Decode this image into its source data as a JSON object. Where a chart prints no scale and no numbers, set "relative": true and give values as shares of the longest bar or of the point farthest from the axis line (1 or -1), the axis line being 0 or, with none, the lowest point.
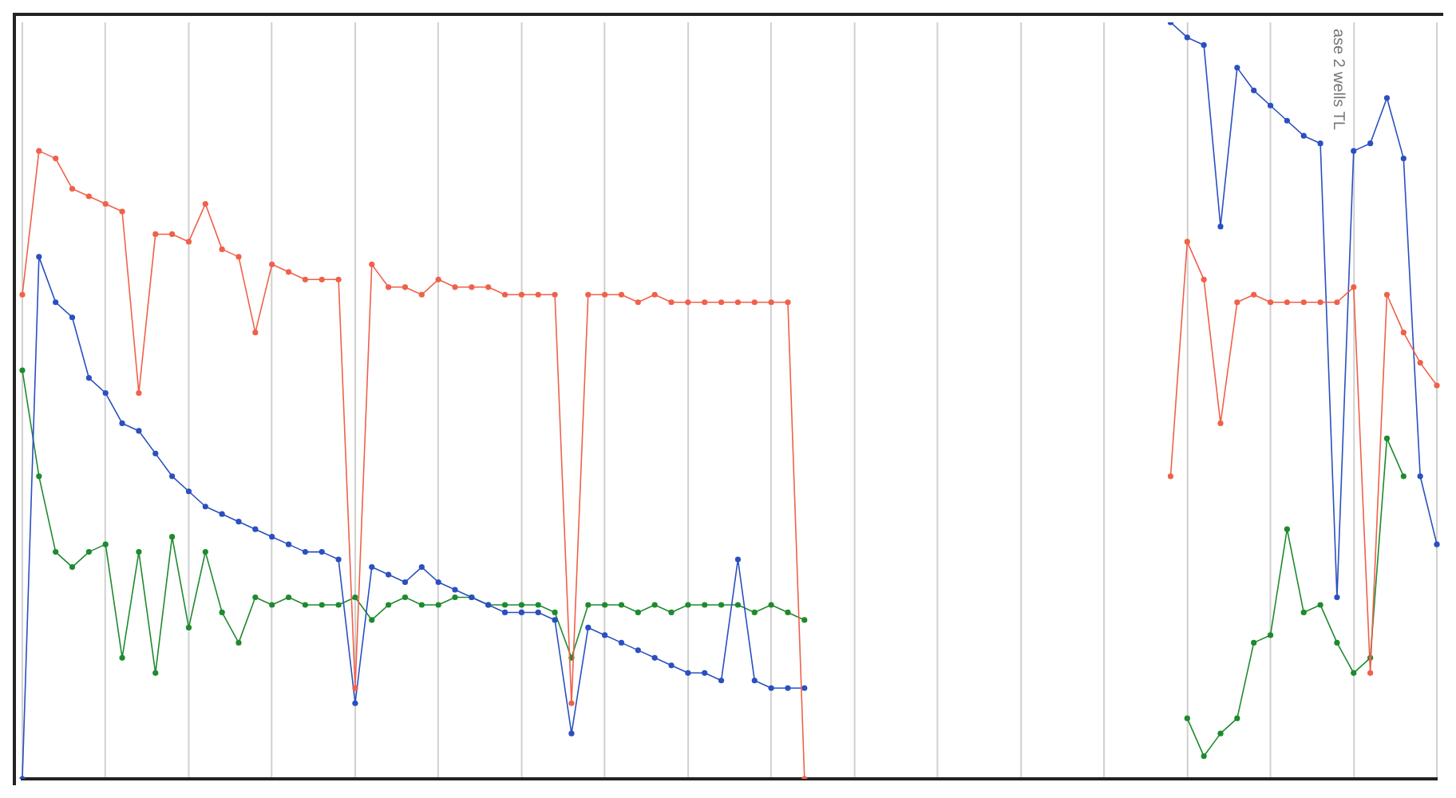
{
  "chart_data": {
    "type": "line",
    "relative": true,
    "grid": "x",
    "legend": false,
    "marker": "circle",
    "line_style": "solid",
    "annotations": [
      "ase 2 wells TL"
    ],
    "categories": [
      null,
      null,
      null,
      null,
      null,
      null,
      null,
      null,
      null,
      null,
      null,
      null,
      null,
      null,
      null,
      null,
      null,
      null,
      null,
      null,
      null,
      null,
      null,
      null,
      null,
      null,
      null,
      null,
      null,
      null,
      null,
      null,
      null,
      null,
      null,
      null,
      null,
      null,
      null,
      null,
      null,
      null,
      null,
      null,
      null,
      null,
      null,
      null,
      null,
      null,
      null,
      null,
      null,
      null,
      null,
      null,
      null,
      null,
      null,
      null,
      null,
      null,
      null,
      null,
      null,
      null,
      null,
      null,
      null,
      null,
      null,
      null,
      null,
      null,
      null,
      null,
      null,
      null,
      null,
      null,
      null,
      null,
      null,
      null,
      null,
      null
    ],
    "series": [
      {
        "color": "#f0604a",
        "values": [
          0.64,
          0.83,
          0.82,
          0.78,
          0.77,
          0.76,
          0.75,
          0.51,
          0.72,
          0.72,
          0.71,
          0.76,
          0.7,
          0.69,
          0.59,
          0.68,
          0.67,
          0.66,
          0.66,
          0.66,
          0.12,
          0.68,
          0.65,
          0.65,
          0.64,
          0.66,
          0.65,
          0.65,
          0.65,
          0.64,
          0.64,
          0.64,
          0.64,
          0.1,
          0.64,
          0.64,
          0.64,
          0.63,
          0.64,
          0.63,
          0.63,
          0.63,
          0.63,
          0.63,
          0.63,
          0.63,
          0.63,
          0.0,
          null,
          null,
          null,
          null,
          null,
          null,
          null,
          null,
          null,
          null,
          null,
          null,
          null,
          null,
          null,
          null,
          null,
          null,
          null,
          null,
          null,
          null,
          null,
          null,
          null,
          null,
          null,
          null,
          null,
          null,
          null,
          null,
          null,
          null,
          null,
          null,
          null,
          null
        ]
      },
      {
        "color": "#f0604a",
        "values": [
          null,
          null,
          null,
          null,
          null,
          null,
          null,
          null,
          null,
          null,
          null,
          null,
          null,
          null,
          null,
          null,
          null,
          null,
          null,
          null,
          null,
          null,
          null,
          null,
          null,
          null,
          null,
          null,
          null,
          null,
          null,
          null,
          null,
          null,
          null,
          null,
          null,
          null,
          null,
          null,
          null,
          null,
          null,
          null,
          null,
          null,
          null,
          null,
          null,
          null,
          null,
          null,
          null,
          null,
          null,
          null,
          null,
          null,
          null,
          null,
          null,
          null,
          null,
          null,
          null,
          null,
          null,
          null,
          null,
          0.4,
          0.71,
          0.66,
          0.47,
          0.63,
          0.64,
          0.63,
          0.63,
          0.63,
          0.63,
          0.63,
          0.65,
          0.14,
          0.64,
          0.59,
          0.55,
          0.52
        ]
      },
      {
        "color": "#2a4fc0",
        "values": [
          0.0,
          0.69,
          0.63,
          0.61,
          0.53,
          0.51,
          0.47,
          0.46,
          0.43,
          0.4,
          0.38,
          0.36,
          0.35,
          0.34,
          0.33,
          0.32,
          0.31,
          0.3,
          0.3,
          0.29,
          0.1,
          0.28,
          0.27,
          0.26,
          0.28,
          0.26,
          0.25,
          0.24,
          0.23,
          0.22,
          0.22,
          0.22,
          0.21,
          0.06,
          0.2,
          0.19,
          0.18,
          0.17,
          0.16,
          0.15,
          0.14,
          0.14,
          0.13,
          0.29,
          0.13,
          0.12,
          0.12,
          0.12,
          null,
          null,
          null,
          null,
          null,
          null,
          null,
          null,
          null,
          null,
          null,
          null,
          null,
          null,
          null,
          null,
          null,
          null,
          null,
          null,
          null,
          null,
          null,
          null,
          null,
          null,
          null,
          null,
          null,
          null,
          null,
          null,
          null,
          null,
          null,
          null,
          null,
          null
        ]
      },
      {
        "color": "#2a4fc0",
        "values": [
          null,
          null,
          null,
          null,
          null,
          null,
          null,
          null,
          null,
          null,
          null,
          null,
          null,
          null,
          null,
          null,
          null,
          null,
          null,
          null,
          null,
          null,
          null,
          null,
          null,
          null,
          null,
          null,
          null,
          null,
          null,
          null,
          null,
          null,
          null,
          null,
          null,
          null,
          null,
          null,
          null,
          null,
          null,
          null,
          null,
          null,
          null,
          null,
          null,
          null,
          null,
          null,
          null,
          null,
          null,
          null,
          null,
          null,
          null,
          null,
          null,
          null,
          null,
          null,
          null,
          null,
          null,
          null,
          null,
          1.0,
          0.98,
          0.97,
          0.73,
          0.94,
          0.91,
          0.89,
          0.87,
          0.85,
          0.84,
          0.24,
          0.83,
          0.84,
          0.9,
          0.82,
          0.4,
          0.31
        ]
      },
      {
        "color": "#1e8a2e",
        "values": [
          0.54,
          0.4,
          0.3,
          0.28,
          0.3,
          0.31,
          0.16,
          0.3,
          0.14,
          0.32,
          0.2,
          0.3,
          0.22,
          0.18,
          0.24,
          0.23,
          0.24,
          0.23,
          0.23,
          0.23,
          0.24,
          0.21,
          0.23,
          0.24,
          0.23,
          0.23,
          0.24,
          0.24,
          0.23,
          0.23,
          0.23,
          0.23,
          0.22,
          0.16,
          0.23,
          0.23,
          0.23,
          0.22,
          0.23,
          0.22,
          0.23,
          0.23,
          0.23,
          0.23,
          0.22,
          0.23,
          0.22,
          0.21,
          null,
          null,
          null,
          null,
          null,
          null,
          null,
          null,
          null,
          null,
          null,
          null,
          null,
          null,
          null,
          null,
          null,
          null,
          null,
          null,
          null,
          null,
          null,
          null,
          null,
          null,
          null,
          null,
          null,
          null,
          null,
          null,
          null,
          null,
          null,
          null,
          null,
          null
        ]
      },
      {
        "color": "#1e8a2e",
        "values": [
          null,
          null,
          null,
          null,
          null,
          null,
          null,
          null,
          null,
          null,
          null,
          null,
          null,
          null,
          null,
          null,
          null,
          null,
          null,
          null,
          null,
          null,
          null,
          null,
          null,
          null,
          null,
          null,
          null,
          null,
          null,
          null,
          null,
          null,
          null,
          null,
          null,
          null,
          null,
          null,
          null,
          null,
          null,
          null,
          null,
          null,
          null,
          null,
          null,
          null,
          null,
          null,
          null,
          null,
          null,
          null,
          null,
          null,
          null,
          null,
          null,
          null,
          null,
          null,
          null,
          null,
          null,
          null,
          null,
          null,
          0.08,
          0.03,
          0.06,
          0.08,
          0.18,
          0.19,
          0.33,
          0.22,
          0.23,
          0.18,
          0.14,
          0.16,
          0.45,
          0.4,
          null,
          null
        ]
      }
    ]
  }
}
